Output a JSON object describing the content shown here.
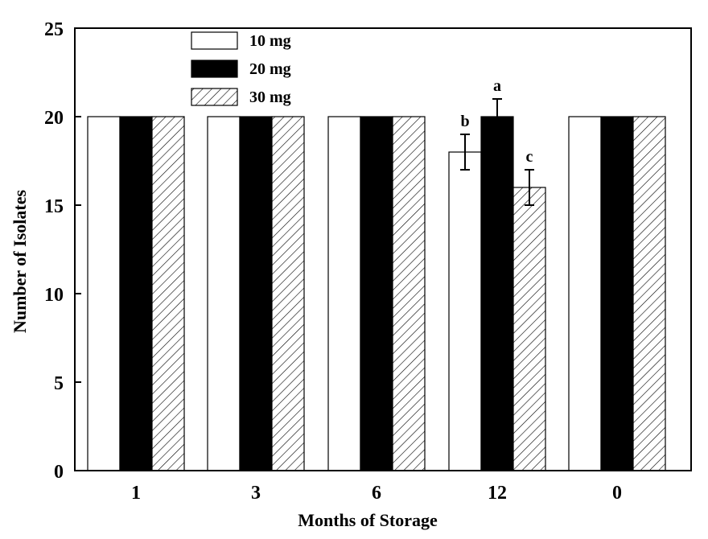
{
  "chart_data": {
    "type": "bar",
    "title": "",
    "xlabel": "Months of Storage",
    "ylabel": "Number of Isolates",
    "categories": [
      "1",
      "3",
      "6",
      "12",
      "0"
    ],
    "ylim": [
      0,
      25
    ],
    "yticks": [
      "0",
      "5",
      "10",
      "15",
      "20",
      "25"
    ],
    "grid": false,
    "legend_position": "top-left",
    "series": [
      {
        "name": "10 mg",
        "fill": "white",
        "values": [
          20,
          20,
          20,
          18,
          20
        ],
        "errors": [
          null,
          null,
          null,
          1,
          null
        ],
        "labels": [
          "",
          "",
          "",
          "b",
          ""
        ]
      },
      {
        "name": "20 mg",
        "fill": "black",
        "values": [
          20,
          20,
          20,
          20,
          20
        ],
        "errors": [
          null,
          null,
          null,
          1,
          null
        ],
        "labels": [
          "",
          "",
          "",
          "a",
          ""
        ]
      },
      {
        "name": "30 mg",
        "fill": "hatched",
        "values": [
          20,
          20,
          20,
          16,
          20
        ],
        "errors": [
          null,
          null,
          null,
          1,
          null
        ],
        "labels": [
          "",
          "",
          "",
          "c",
          ""
        ]
      }
    ],
    "colors": {
      "axis": "#000000",
      "white_fill": "#ffffff",
      "black_fill": "#000000",
      "hatch": "#000000"
    }
  }
}
